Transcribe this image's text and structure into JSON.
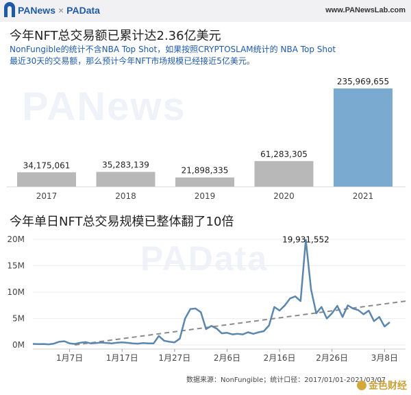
{
  "header": {
    "brand_left": "PANews",
    "brand_sep": "×",
    "brand_right": "PAData",
    "site": "www.PANewsLab.com"
  },
  "watermarks": {
    "top": "PANews",
    "bottom": "PAData"
  },
  "chart_data": [
    {
      "type": "bar",
      "title": "今年NFT总交易额已累计达2.36亿美元",
      "subtitle": "NonFungible的统计不含NBA Top Shot，如果按照CRYPTOSLAM统计的 NBA Top Shot最近30天的交易额，那么预计今年NFT市场规模已经接近5亿美元。",
      "categories": [
        "2017",
        "2018",
        "2019",
        "2020",
        "2021"
      ],
      "values": [
        34175061,
        35283139,
        21898335,
        61283305,
        235969655
      ],
      "value_labels": [
        "34,175,061",
        "35,283,139",
        "21,898,335",
        "61,283,305",
        "235,969,655"
      ],
      "colors": {
        "default": "#b8b8b8",
        "highlight": "#7aaad0",
        "highlight_index": 4
      },
      "ylim": [
        0,
        236000000
      ]
    },
    {
      "type": "line",
      "title": "今年单日NFT总交易规模已整体翻了10倍",
      "x_tick_labels": [
        "1月7日",
        "1月17日",
        "1月27日",
        "2月6日",
        "2月16日",
        "2月26日",
        "3月8日"
      ],
      "x_tick_days": [
        6,
        16,
        26,
        36,
        46,
        56,
        66
      ],
      "y_tick_labels": [
        "0M",
        "5M",
        "10M",
        "15M",
        "20M"
      ],
      "y_tick_values": [
        0,
        5000000,
        10000000,
        15000000,
        20000000
      ],
      "ylim": [
        0,
        20000000
      ],
      "xlim_days": [
        -1,
        70
      ],
      "peak_label": "19,931,552",
      "series": [
        {
          "days": [
            -1,
            0,
            1,
            2,
            3,
            4,
            5,
            6,
            7,
            8,
            9,
            10,
            11,
            12,
            13,
            14,
            15,
            16,
            17,
            18,
            19,
            20,
            21,
            22,
            23,
            24,
            25,
            26,
            27,
            28,
            29,
            30,
            31,
            32,
            33,
            34,
            35,
            36,
            37,
            38,
            39,
            40,
            41,
            42,
            43,
            44,
            45,
            46,
            47,
            48,
            49,
            50,
            51,
            52,
            53,
            54,
            55,
            56,
            57,
            58,
            59,
            60,
            61,
            62,
            63,
            64,
            65,
            66,
            67
          ],
          "values": [
            200000,
            150000,
            180000,
            120000,
            250000,
            600000,
            700000,
            300000,
            200000,
            400000,
            550000,
            300000,
            350000,
            450000,
            380000,
            300000,
            420000,
            500000,
            400000,
            300000,
            250000,
            350000,
            300000,
            280000,
            1700000,
            800000,
            600000,
            500000,
            1200000,
            5000000,
            6800000,
            6900000,
            6200000,
            3000000,
            3600000,
            3100000,
            2200000,
            2300000,
            2000000,
            2100000,
            2000000,
            2400000,
            2100000,
            2400000,
            2600000,
            3700000,
            7200000,
            6500000,
            7500000,
            8800000,
            9200000,
            8300000,
            19931552,
            10500000,
            6000000,
            7200000,
            5000000,
            6000000,
            7400000,
            5300000,
            7500000,
            6900000,
            6600000,
            5800000,
            6500000,
            4500000,
            5300000,
            3500000,
            4300000
          ],
          "color": "#5b86ad"
        }
      ],
      "trendline": {
        "from": [
          7,
          0
        ],
        "to": [
          70,
          8300000
        ],
        "color": "#8a8a8a"
      }
    }
  ],
  "footer": {
    "source": "数据来源：NonFungible；统计口径：2017/01/01-2021/03/07",
    "jinse": "金色财经"
  }
}
